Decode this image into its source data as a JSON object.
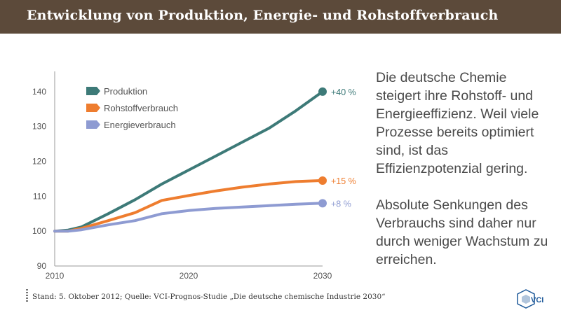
{
  "header": {
    "title": "Entwicklung von Produktion, Energie- und Rohstoffverbrauch"
  },
  "chart_data": {
    "type": "line",
    "title": "",
    "xlabel": "",
    "ylabel": "",
    "xlim": [
      2010,
      2030
    ],
    "ylim": [
      90,
      145
    ],
    "x_ticks": [
      2010,
      2020,
      2030
    ],
    "y_ticks": [
      90,
      100,
      110,
      120,
      130,
      140
    ],
    "grid": false,
    "legend": "top-left",
    "series": [
      {
        "name": "Produktion",
        "color": "#3d7a78",
        "end_label": "+40 %",
        "x": [
          2010,
          2011,
          2012,
          2014,
          2016,
          2018,
          2020,
          2022,
          2024,
          2026,
          2028,
          2030
        ],
        "y": [
          100,
          100.3,
          101.2,
          105,
          109,
          113.5,
          117.5,
          121.5,
          125.5,
          129.5,
          134.5,
          140
        ]
      },
      {
        "name": "Rohstoffverbrauch",
        "color": "#ee7d2f",
        "end_label": "+15 %",
        "x": [
          2010,
          2011,
          2012,
          2014,
          2016,
          2018,
          2020,
          2022,
          2024,
          2026,
          2028,
          2030
        ],
        "y": [
          100,
          100,
          100.8,
          103,
          105.3,
          108.8,
          110.2,
          111.5,
          112.6,
          113.5,
          114.2,
          114.5
        ]
      },
      {
        "name": "Energieverbrauch",
        "color": "#8e9bd2",
        "end_label": "+8 %",
        "x": [
          2010,
          2011,
          2012,
          2014,
          2016,
          2018,
          2020,
          2022,
          2024,
          2026,
          2028,
          2030
        ],
        "y": [
          100,
          100,
          100.4,
          101.8,
          103,
          105,
          105.9,
          106.5,
          106.9,
          107.3,
          107.7,
          108
        ]
      }
    ]
  },
  "text": {
    "paragraph1": "Die deutsche Chemie steigert ihre Rohstoff- und Energieeffizienz. Weil viele Prozesse bereits optimiert sind, ist das Effizienzpotenzial gering.",
    "paragraph2": "Absolute Senkungen des Verbrauchs sind daher nur durch weniger Wachstum zu erreichen."
  },
  "footer": {
    "source": "Stand: 5. Oktober 2012; Quelle: VCI-Prognos-Studie „Die deutsche chemische Industrie 2030“",
    "logo_text": "VCI"
  }
}
